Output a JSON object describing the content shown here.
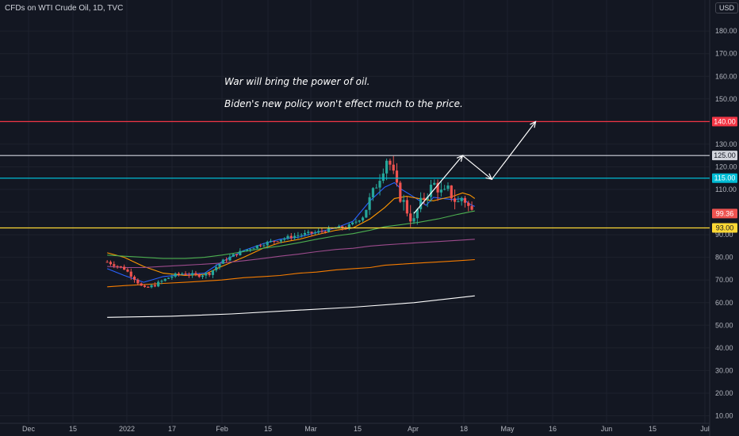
{
  "header": {
    "symbol": "CFDs on WTI Crude Oil, 1D, TVC",
    "currency": "USD"
  },
  "annotations": [
    "War will bring the power of oil.",
    "Biden's new policy won't effect much to the price."
  ],
  "colors": {
    "background": "#131722",
    "grid": "#1e222d",
    "axis_text": "#b2b5be",
    "candle_up": "#26a69a",
    "candle_down": "#ef5350",
    "line_140": "#f23645",
    "line_125": "#d1d4dc",
    "line_115": "#00bcd4",
    "line_93": "#fdd835",
    "ma_fast": "#2962ff",
    "ma_slow": "#ff9800",
    "ma_green": "#4caf50",
    "ma_purple": "#9c4b8c",
    "ma_orange": "#f57c00",
    "ma_white": "#ffffff",
    "arrow": "#ffffff"
  },
  "chart_data": {
    "type": "candlestick",
    "title": "CFDs on WTI Crude Oil, 1D, TVC",
    "y_ticks": [
      10,
      20,
      30,
      40,
      50,
      60,
      70,
      80,
      90,
      100,
      110,
      120,
      130,
      140,
      150,
      160,
      170,
      180
    ],
    "y_tick_labels": [
      "10.00",
      "20.00",
      "30.00",
      "40.00",
      "50.00",
      "60.00",
      "70.00",
      "80.00",
      "90.00",
      "100.00",
      "110.00",
      "120.00",
      "130.00",
      "140.00",
      "150.00",
      "160.00",
      "170.00",
      "180.00"
    ],
    "x_ticks": [
      "Dec",
      "15",
      "2022",
      "17",
      "Feb",
      "15",
      "Mar",
      "15",
      "Apr",
      "18",
      "May",
      "16",
      "Jun",
      "15",
      "Jul"
    ],
    "horizontal_levels": [
      {
        "value": 140.0,
        "label": "140.00",
        "color": "#f23645"
      },
      {
        "value": 125.0,
        "label": "125.00",
        "color": "#d1d4dc"
      },
      {
        "value": 115.0,
        "label": "115.00",
        "color": "#00bcd4"
      },
      {
        "value": 93.0,
        "label": "93.00",
        "color": "#fdd835"
      }
    ],
    "last_price": {
      "value": 99.36,
      "label": "99.36"
    },
    "projection_path": [
      [
        0,
        99.4
      ],
      [
        20,
        125
      ],
      [
        32,
        114.5
      ],
      [
        50,
        140
      ]
    ],
    "moving_averages": [
      {
        "color": "#2962ff",
        "values": [
          [
            -126,
            75
          ],
          [
            -119,
            72
          ],
          [
            -111,
            69
          ],
          [
            -103,
            71.5
          ],
          [
            -94,
            72.5
          ],
          [
            -86,
            73
          ],
          [
            -79,
            78
          ],
          [
            -70,
            83
          ],
          [
            -62,
            86
          ],
          [
            -55,
            88
          ],
          [
            -47,
            89
          ],
          [
            -40,
            91
          ],
          [
            -32,
            93
          ],
          [
            -25,
            96
          ],
          [
            -18,
            105
          ],
          [
            -12,
            111
          ],
          [
            -8,
            113
          ],
          [
            -5,
            110
          ],
          [
            -2,
            108
          ],
          [
            1,
            106
          ],
          [
            5,
            103
          ],
          [
            8,
            106.5
          ],
          [
            12,
            106
          ],
          [
            16,
            105.5
          ],
          [
            20,
            106
          ],
          [
            23,
            103.5
          ],
          [
            25,
            102.5
          ]
        ]
      },
      {
        "color": "#ff9800",
        "values": [
          [
            -126,
            82
          ],
          [
            -119,
            80
          ],
          [
            -111,
            76
          ],
          [
            -103,
            73
          ],
          [
            -94,
            72
          ],
          [
            -86,
            72.5
          ],
          [
            -79,
            76
          ],
          [
            -70,
            80
          ],
          [
            -62,
            84
          ],
          [
            -55,
            86.5
          ],
          [
            -47,
            88
          ],
          [
            -40,
            90
          ],
          [
            -32,
            92
          ],
          [
            -25,
            93
          ],
          [
            -18,
            97
          ],
          [
            -12,
            102
          ],
          [
            -8,
            106
          ],
          [
            -3,
            107
          ],
          [
            2,
            106
          ],
          [
            8,
            105
          ],
          [
            12,
            106
          ],
          [
            16,
            107
          ],
          [
            20,
            108.5
          ],
          [
            23,
            107.5
          ],
          [
            25,
            106
          ]
        ]
      },
      {
        "color": "#4caf50",
        "values": [
          [
            -126,
            81
          ],
          [
            -119,
            80.5
          ],
          [
            -111,
            80
          ],
          [
            -103,
            79.5
          ],
          [
            -94,
            79.5
          ],
          [
            -86,
            80
          ],
          [
            -79,
            81
          ],
          [
            -70,
            82.5
          ],
          [
            -62,
            84
          ],
          [
            -55,
            85
          ],
          [
            -47,
            86.5
          ],
          [
            -40,
            88
          ],
          [
            -32,
            89.5
          ],
          [
            -25,
            90.5
          ],
          [
            -18,
            92
          ],
          [
            -12,
            93.5
          ],
          [
            -5,
            94.5
          ],
          [
            2,
            95.5
          ],
          [
            10,
            97
          ],
          [
            18,
            99
          ],
          [
            25,
            100.5
          ]
        ]
      },
      {
        "color": "#9c4b8c",
        "values": [
          [
            -126,
            76
          ],
          [
            -119,
            75.5
          ],
          [
            -111,
            75.5
          ],
          [
            -103,
            76
          ],
          [
            -94,
            76.5
          ],
          [
            -86,
            77
          ],
          [
            -79,
            77.5
          ],
          [
            -70,
            78.5
          ],
          [
            -62,
            79.5
          ],
          [
            -55,
            80.5
          ],
          [
            -47,
            81.5
          ],
          [
            -40,
            82.5
          ],
          [
            -32,
            83.5
          ],
          [
            -25,
            84
          ],
          [
            -18,
            85
          ],
          [
            -12,
            85.5
          ],
          [
            -5,
            86
          ],
          [
            2,
            86.5
          ],
          [
            10,
            87
          ],
          [
            18,
            87.5
          ],
          [
            25,
            88
          ]
        ]
      },
      {
        "color": "#f57c00",
        "values": [
          [
            -126,
            67
          ],
          [
            -119,
            67.5
          ],
          [
            -111,
            68
          ],
          [
            -103,
            68.5
          ],
          [
            -94,
            69
          ],
          [
            -86,
            69.5
          ],
          [
            -79,
            70
          ],
          [
            -70,
            71
          ],
          [
            -62,
            71.5
          ],
          [
            -55,
            72
          ],
          [
            -47,
            73
          ],
          [
            -40,
            73.5
          ],
          [
            -32,
            74.5
          ],
          [
            -25,
            75
          ],
          [
            -18,
            75.5
          ],
          [
            -12,
            76.5
          ],
          [
            -5,
            77
          ],
          [
            2,
            77.5
          ],
          [
            10,
            78
          ],
          [
            18,
            78.5
          ],
          [
            25,
            79
          ]
        ]
      },
      {
        "color": "#ffffff",
        "values": [
          [
            -126,
            53.5
          ],
          [
            -100,
            54
          ],
          [
            -75,
            55
          ],
          [
            -50,
            56.5
          ],
          [
            -25,
            58
          ],
          [
            0,
            60
          ],
          [
            25,
            63
          ]
        ]
      }
    ]
  }
}
